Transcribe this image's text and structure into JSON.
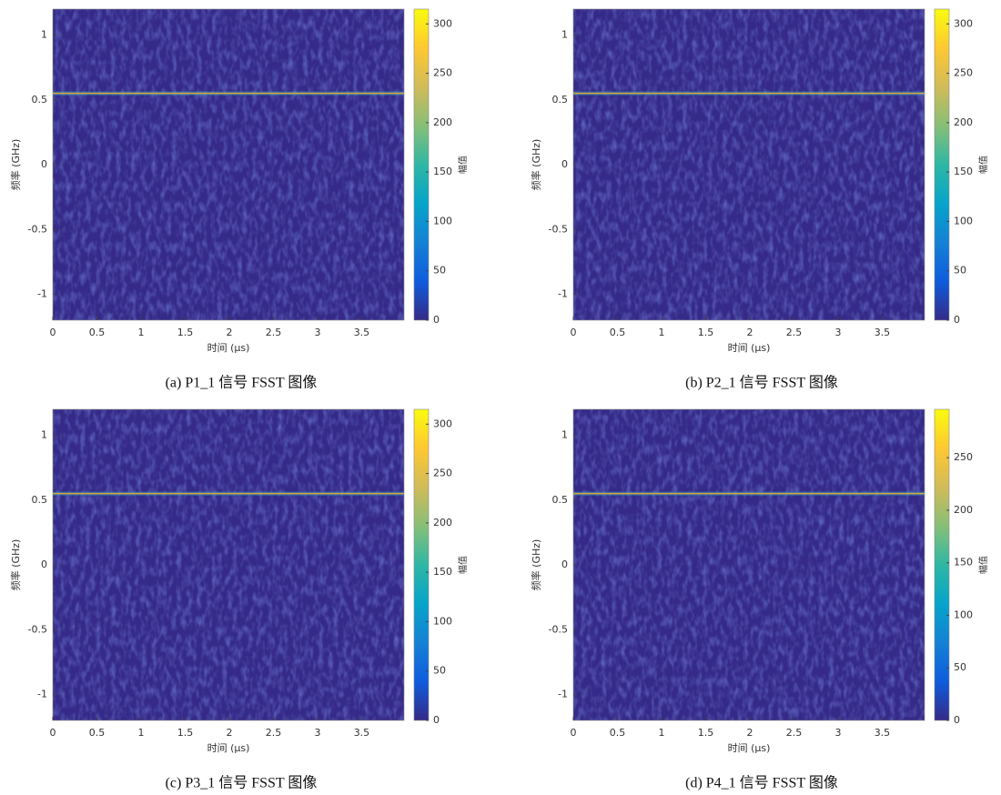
{
  "chart_data": [
    {
      "type": "spectrogram",
      "caption": "(a) P1_1 信号 FSST 图像",
      "xlabel": "时间 (μs)",
      "ylabel": "频率 (GHz)",
      "colorbar_label": "幅值",
      "xlim": [
        0,
        3.98
      ],
      "xticks": [
        0,
        0.5,
        1,
        1.5,
        2,
        2.5,
        3,
        3.5
      ],
      "ylim": [
        -1.2,
        1.2
      ],
      "yticks": [
        -1,
        -0.5,
        0,
        0.5,
        1
      ],
      "clim": [
        0,
        315
      ],
      "cticks": [
        0,
        50,
        100,
        150,
        200,
        250,
        300
      ],
      "colormap": "parula",
      "signal": {
        "x": [
          0,
          3.98
        ],
        "y": [
          0.55,
          0.55
        ],
        "color": "#d9a23c"
      }
    },
    {
      "type": "spectrogram",
      "caption": "(b) P2_1 信号 FSST 图像",
      "xlabel": "时间 (μs)",
      "ylabel": "频率 (GHz)",
      "colorbar_label": "幅值",
      "xlim": [
        0,
        3.98
      ],
      "xticks": [
        0,
        0.5,
        1,
        1.5,
        2,
        2.5,
        3,
        3.5
      ],
      "ylim": [
        -1.2,
        1.2
      ],
      "yticks": [
        -1,
        -0.5,
        0,
        0.5,
        1
      ],
      "clim": [
        0,
        315
      ],
      "cticks": [
        0,
        50,
        100,
        150,
        200,
        250,
        300
      ],
      "colormap": "parula",
      "signal": {
        "x": [
          0,
          3.98
        ],
        "y": [
          0.55,
          0.55
        ],
        "color": "#d9a23c"
      }
    },
    {
      "type": "spectrogram",
      "caption": "(c) P3_1 信号 FSST 图像",
      "xlabel": "时间 (μs)",
      "ylabel": "频率 (GHz)",
      "colorbar_label": "幅值",
      "xlim": [
        0,
        3.98
      ],
      "xticks": [
        0,
        0.5,
        1,
        1.5,
        2,
        2.5,
        3,
        3.5
      ],
      "ylim": [
        -1.2,
        1.2
      ],
      "yticks": [
        -1,
        -0.5,
        0,
        0.5,
        1
      ],
      "clim": [
        0,
        315
      ],
      "cticks": [
        0,
        50,
        100,
        150,
        200,
        250,
        300
      ],
      "colormap": "parula",
      "signal": {
        "x": [
          0,
          3.98
        ],
        "y": [
          0.55,
          0.55
        ],
        "color": "#d9a23c"
      }
    },
    {
      "type": "spectrogram",
      "caption": "(d) P4_1 信号 FSST 图像",
      "xlabel": "时间 (μs)",
      "ylabel": "频率 (GHz)",
      "colorbar_label": "幅值",
      "xlim": [
        0,
        3.98
      ],
      "xticks": [
        0,
        0.5,
        1,
        1.5,
        2,
        2.5,
        3,
        3.5
      ],
      "ylim": [
        -1.2,
        1.2
      ],
      "yticks": [
        -1,
        -0.5,
        0,
        0.5,
        1
      ],
      "clim": [
        0,
        296
      ],
      "cticks": [
        0,
        50,
        100,
        150,
        200,
        250
      ],
      "colormap": "parula",
      "signal": {
        "x": [
          0,
          3.98
        ],
        "y": [
          0.55,
          0.55
        ],
        "color": "#d9a23c"
      }
    }
  ]
}
